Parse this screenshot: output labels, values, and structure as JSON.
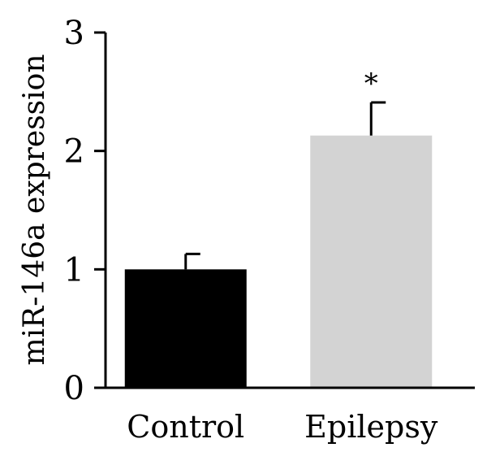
{
  "chart_data": {
    "type": "bar",
    "title": "",
    "xlabel": "",
    "ylabel": "miR-146a expression",
    "ylim": [
      0,
      3
    ],
    "yticks": [
      0,
      1,
      2,
      3
    ],
    "ytick_labels": [
      "0",
      "1",
      "2",
      "3"
    ],
    "grid": false,
    "legend": "none",
    "categories": [
      "Control",
      "Epilepsy"
    ],
    "values": [
      1.0,
      2.13
    ],
    "error_upper": [
      0.13,
      0.28
    ],
    "bar_colors": [
      "#000000",
      "#d3d3d3"
    ],
    "annotations": [
      {
        "category": "Epilepsy",
        "text": "*"
      }
    ]
  }
}
